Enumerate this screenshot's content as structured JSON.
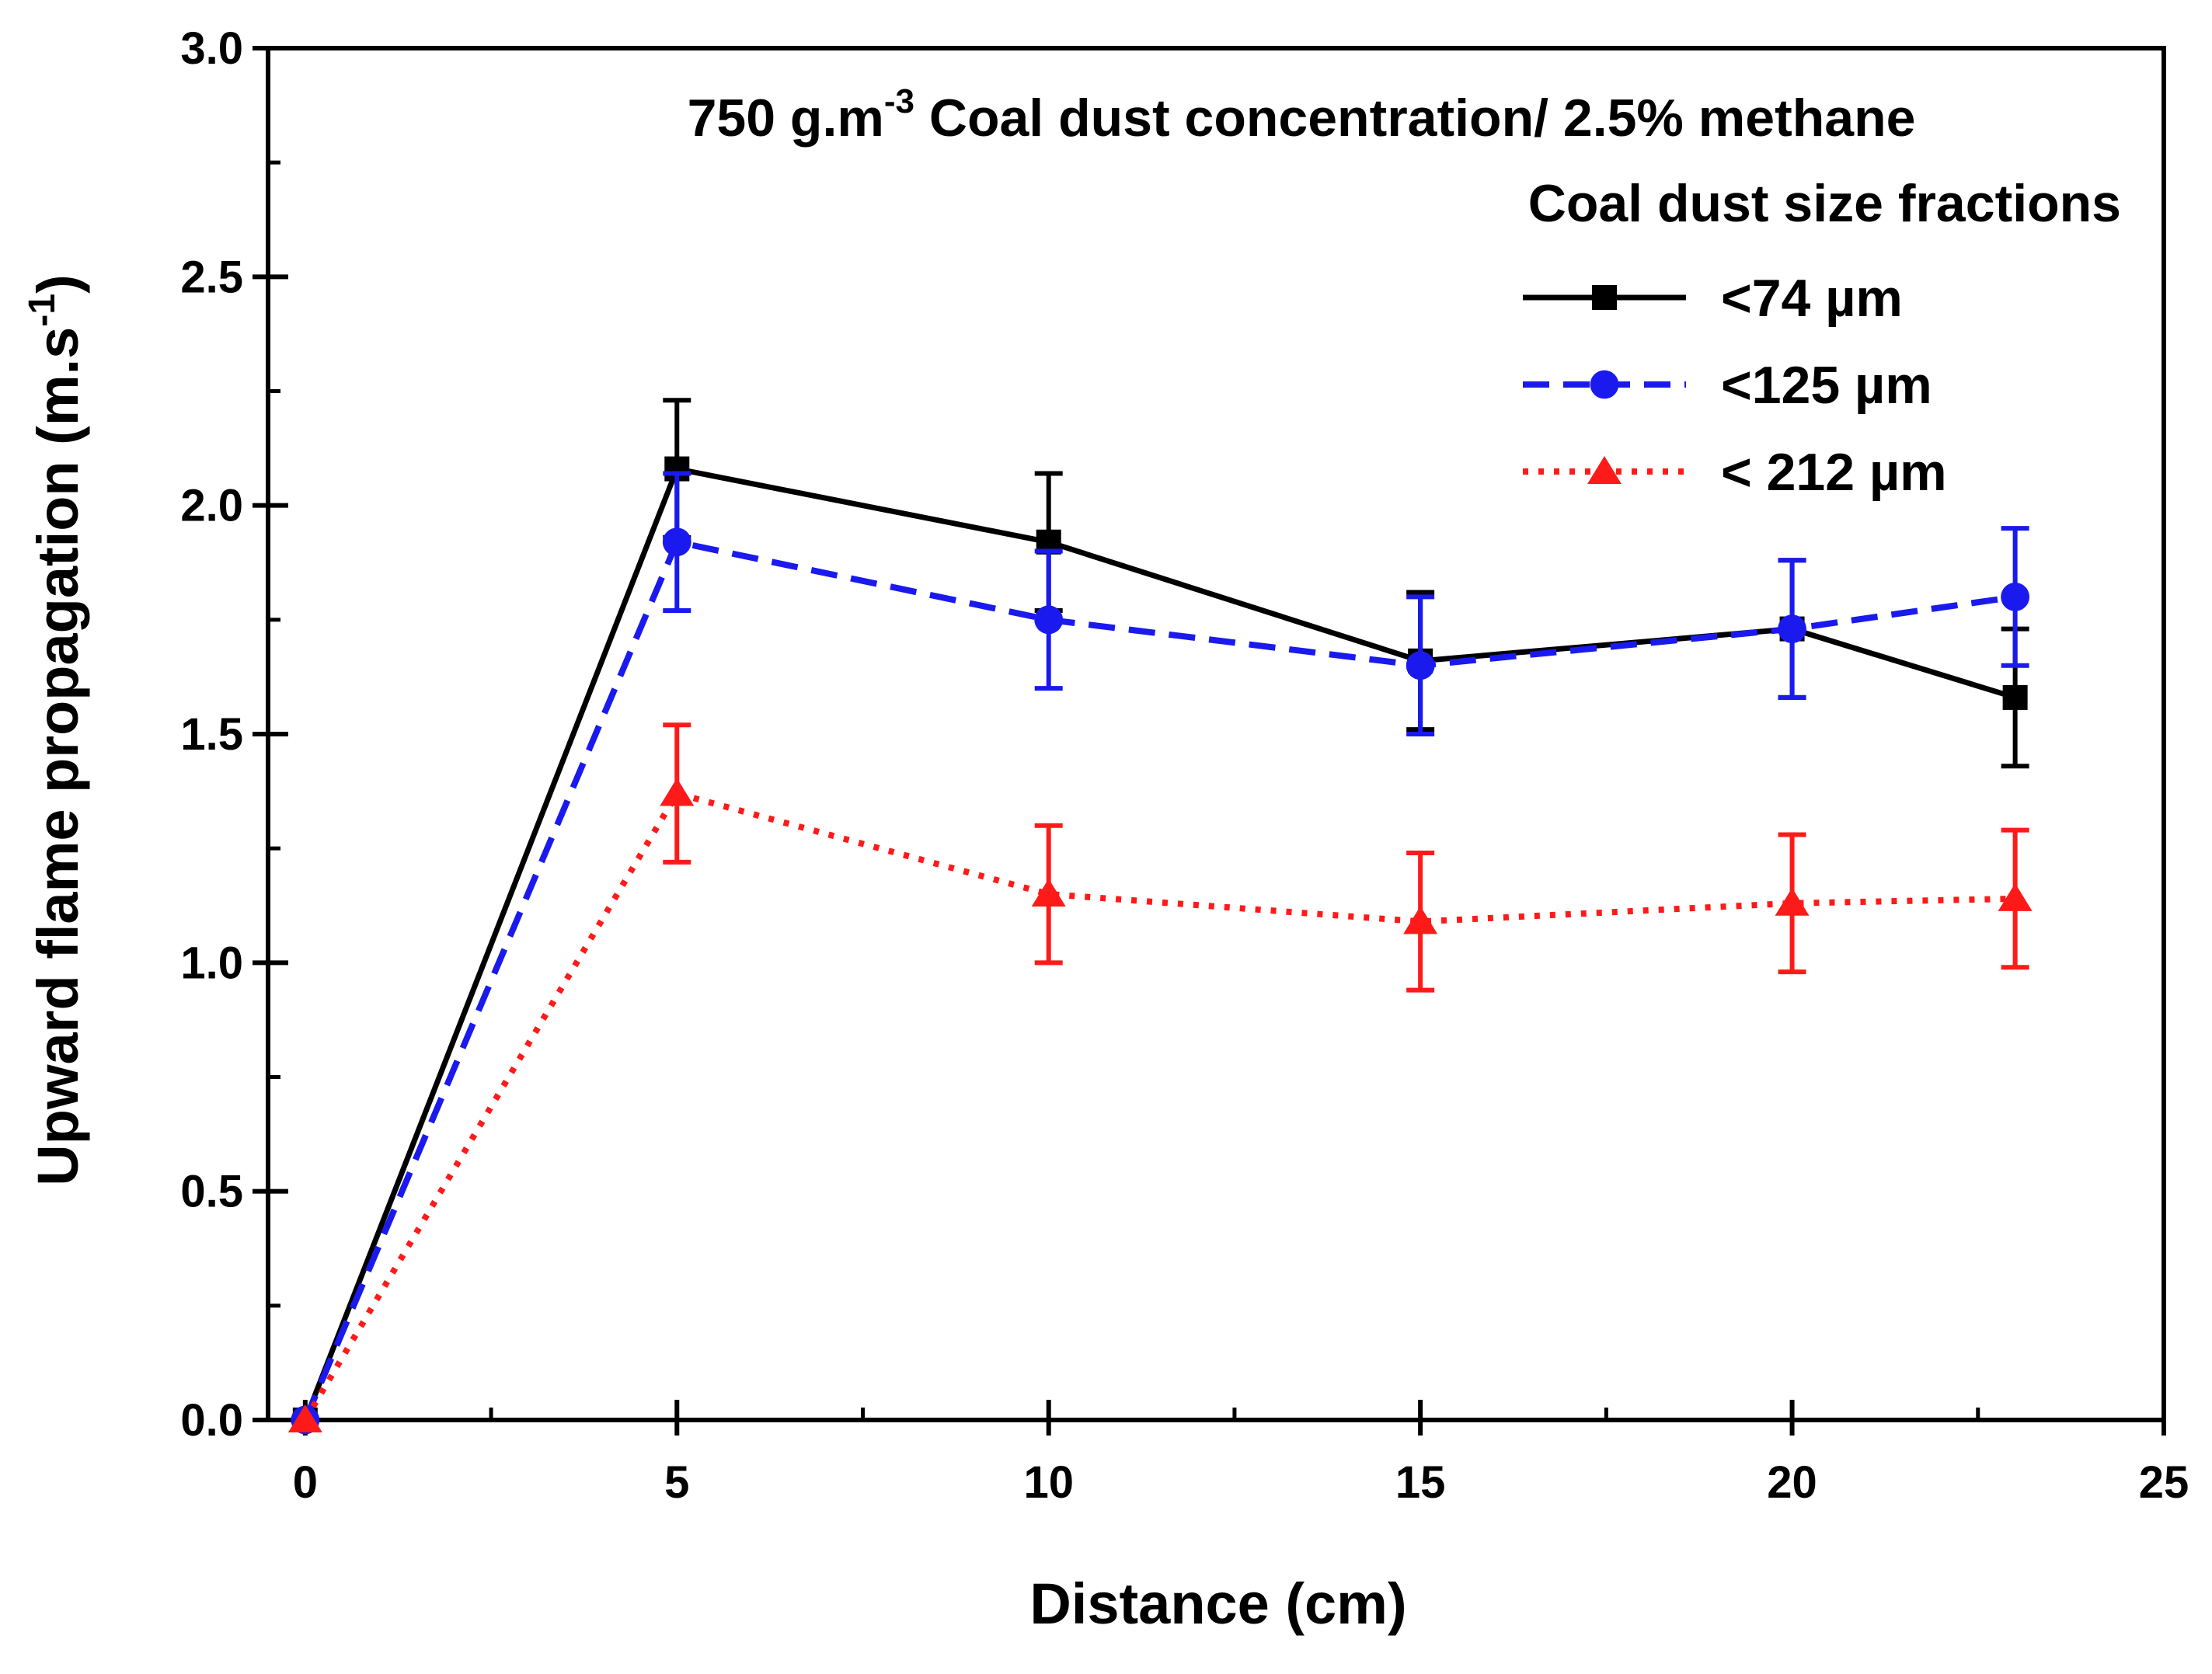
{
  "chart_data": {
    "type": "line",
    "title_main": "750 g.m",
    "title_superscript": "-3",
    "title_rest": " Coal dust concentration/ 2.5% methane",
    "xlabel": "Distance (cm)",
    "ylabel_main": "Upward flame propagation (m.s",
    "ylabel_superscript": "-1",
    "ylabel_close": ")",
    "xlim": [
      -0.5,
      25
    ],
    "ylim": [
      0,
      3.0
    ],
    "x_ticks": [
      0,
      5,
      10,
      15,
      20,
      25
    ],
    "x_tick_labels": [
      "0",
      "5",
      "10",
      "15",
      "20",
      "25"
    ],
    "y_ticks": [
      0,
      0.5,
      1.0,
      1.5,
      2.0,
      2.5,
      3.0
    ],
    "y_tick_labels": [
      "0.0",
      "0.5",
      "1.0",
      "1.5",
      "2.0",
      "2.5",
      "3.0"
    ],
    "legend_title": "Coal dust size fractions",
    "legend_position": "top-right",
    "series": [
      {
        "name": "<74 µm",
        "color": "#000000",
        "marker": "square",
        "line_style": "solid",
        "x": [
          0,
          5,
          10,
          15,
          20,
          23
        ],
        "values": [
          0,
          2.08,
          1.92,
          1.66,
          1.73,
          1.58
        ],
        "errors": [
          0,
          0.15,
          0.15,
          0.15,
          0.15,
          0.15
        ]
      },
      {
        "name": "<125 µm",
        "color": "#1a1aee",
        "marker": "circle",
        "line_style": "dashed",
        "x": [
          0,
          5,
          10,
          15,
          20,
          23
        ],
        "values": [
          0,
          1.92,
          1.75,
          1.65,
          1.73,
          1.8
        ],
        "errors": [
          0,
          0.15,
          0.15,
          0.15,
          0.15,
          0.15
        ]
      },
      {
        "name": "< 212 µm",
        "color": "#ff1a1a",
        "marker": "triangle",
        "line_style": "dotted",
        "x": [
          0,
          5,
          10,
          15,
          20,
          23
        ],
        "values": [
          0,
          1.37,
          1.15,
          1.09,
          1.13,
          1.14
        ],
        "errors": [
          0,
          0.15,
          0.15,
          0.15,
          0.15,
          0.15
        ]
      }
    ]
  }
}
